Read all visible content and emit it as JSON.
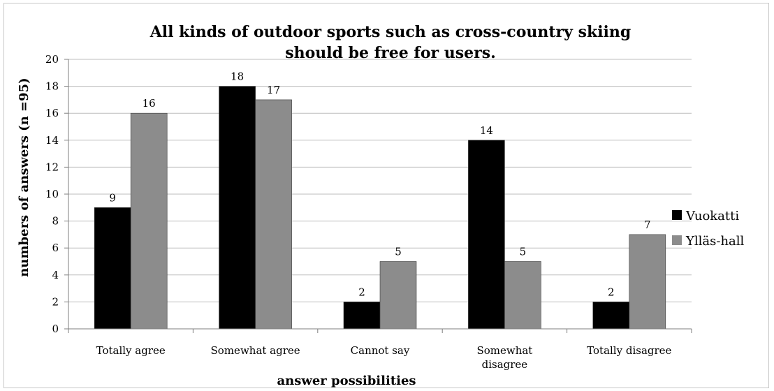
{
  "chart_data": {
    "type": "bar",
    "title_lines": [
      "All kinds of outdoor sports such as cross-country skiing",
      "should be free for users."
    ],
    "xlabel": "answer possibilities",
    "ylabel": "numbers of answers (n =95)",
    "ylim": [
      0,
      20
    ],
    "ytick_step": 2,
    "yticks": [
      "0",
      "2",
      "4",
      "6",
      "8",
      "10",
      "12",
      "14",
      "16",
      "18",
      "20"
    ],
    "grid": true,
    "legend_position": "right",
    "categories": [
      [
        "Totally agree"
      ],
      [
        "Somewhat agree"
      ],
      [
        "Cannot say"
      ],
      [
        "Somewhat",
        "disagree"
      ],
      [
        "Totally disagree"
      ]
    ],
    "series": [
      {
        "name": "Vuokatti",
        "color": "#000000",
        "values": [
          9,
          18,
          2,
          14,
          2
        ],
        "value_labels": [
          "9",
          "18",
          "2",
          "14",
          "2"
        ]
      },
      {
        "name": "Ylläs-hall",
        "color": "#8c8c8c",
        "values": [
          16,
          17,
          5,
          5,
          7
        ],
        "value_labels": [
          "16",
          "17",
          "5",
          "5",
          "7"
        ]
      }
    ]
  }
}
